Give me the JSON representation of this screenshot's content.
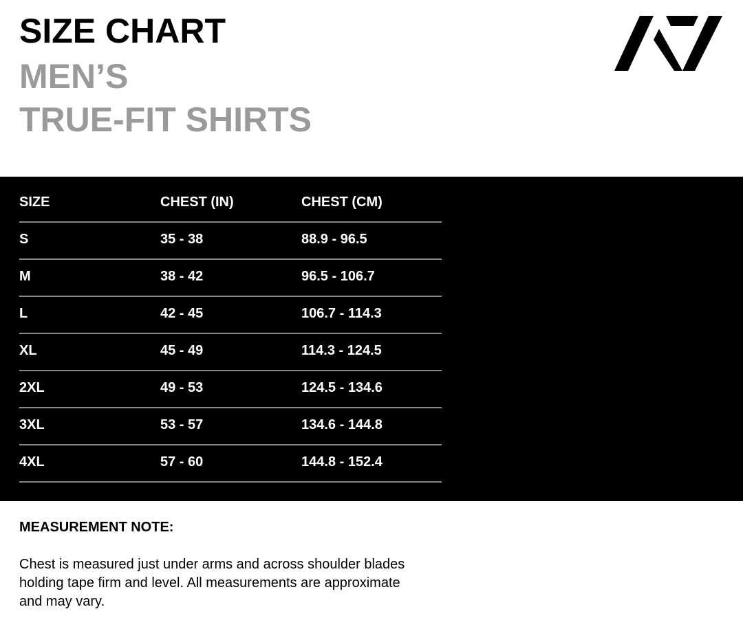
{
  "title": {
    "line1": "SIZE CHART",
    "line2": "MEN’S",
    "line3": "TRUE-FIT SHIRTS"
  },
  "logo": {
    "text": "A7",
    "icon": "a7-logo"
  },
  "table": {
    "headers": [
      "SIZE",
      "CHEST (IN)",
      "CHEST (CM)"
    ],
    "rows": [
      [
        "S",
        "35 - 38",
        "88.9 - 96.5"
      ],
      [
        "M",
        "38 - 42",
        "96.5 - 106.7"
      ],
      [
        "L",
        "42 - 45",
        "106.7 - 114.3"
      ],
      [
        "XL",
        "45 - 49",
        "114.3 - 124.5"
      ],
      [
        "2XL",
        "49 - 53",
        "124.5 - 134.6"
      ],
      [
        "3XL",
        "53 - 57",
        "134.6 - 144.8"
      ],
      [
        "4XL",
        "57 - 60",
        "144.8 - 152.4"
      ]
    ]
  },
  "note": {
    "heading": "MEASUREMENT NOTE:",
    "lines": [
      "Chest is measured just under arms and across shoulder blades",
      "holding tape firm and level. All measurements are approximate",
      "and may vary."
    ]
  }
}
